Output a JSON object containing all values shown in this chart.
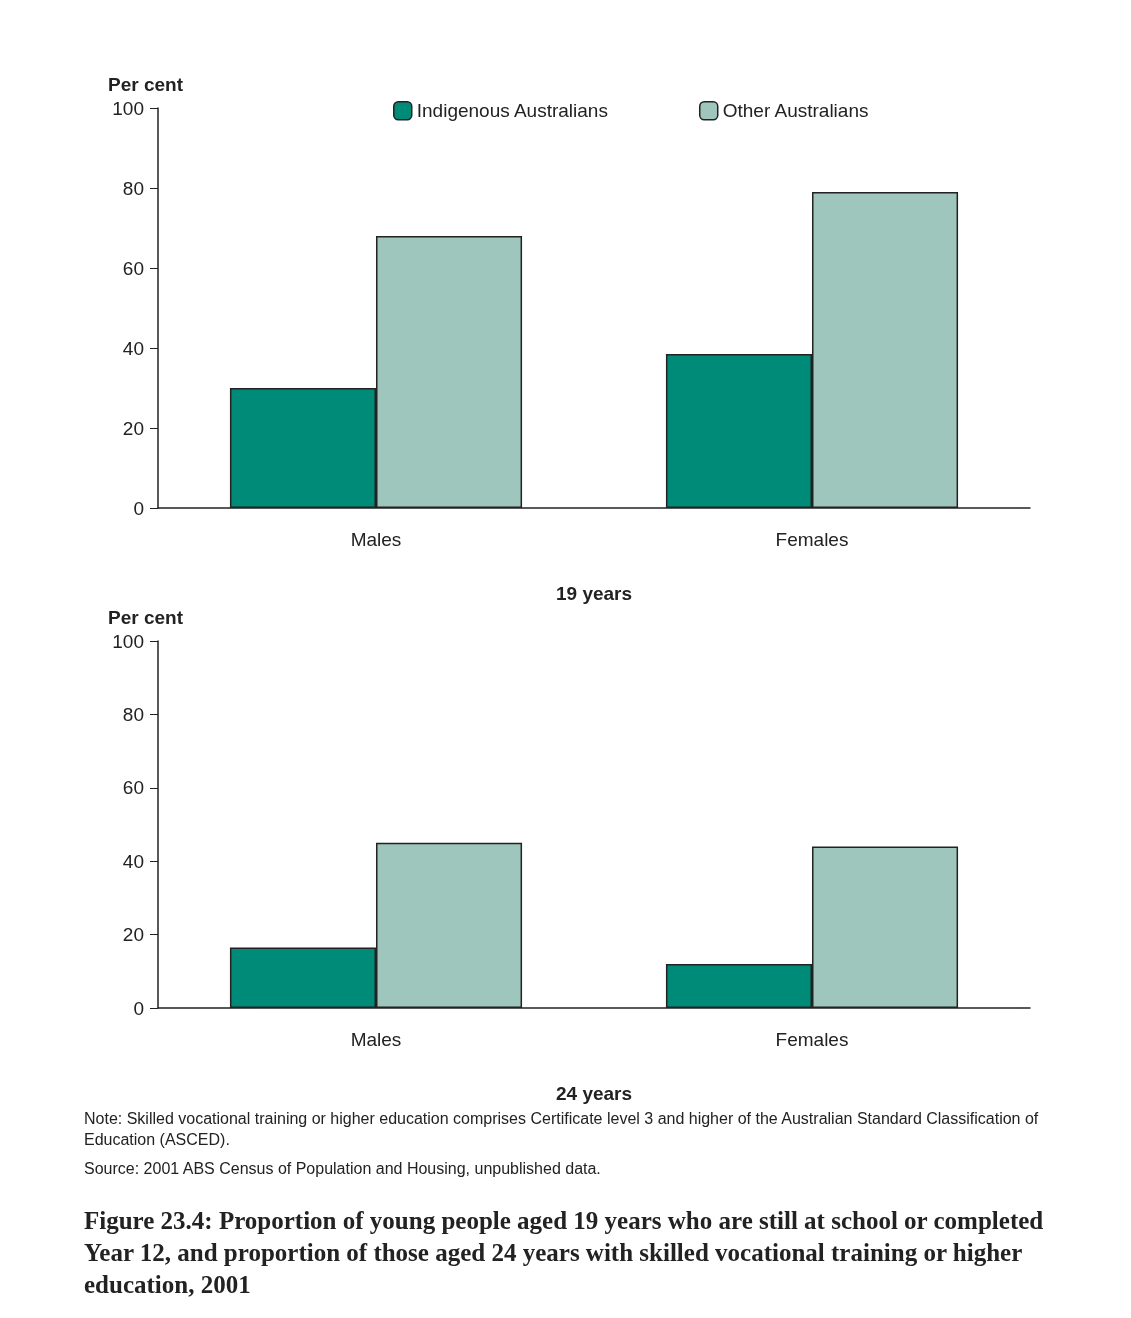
{
  "chart_data": [
    {
      "type": "bar",
      "xlabel": "19 years",
      "ylabel": "Per cent",
      "categories": [
        "Males",
        "Females"
      ],
      "series": [
        {
          "name": "Indigenous Australians",
          "color": "#008a78",
          "values": [
            30,
            38.5
          ]
        },
        {
          "name": "Other Australians",
          "color": "#9fc6bd",
          "values": [
            68,
            79
          ]
        }
      ],
      "ylim": [
        0,
        100
      ],
      "yticks": [
        0,
        20,
        40,
        60,
        80,
        100
      ],
      "grid": false,
      "legend": "top"
    },
    {
      "type": "bar",
      "xlabel": "24 years",
      "ylabel": "Per cent",
      "categories": [
        "Males",
        "Females"
      ],
      "series": [
        {
          "color": "#008a78",
          "values": [
            16.5,
            12
          ]
        },
        {
          "color": "#9fc6bd",
          "values": [
            45,
            44
          ]
        }
      ],
      "ylim": [
        0,
        100
      ],
      "yticks": [
        0,
        20,
        40,
        60,
        80,
        100
      ],
      "grid": false,
      "annotations": [
        "Note: Skilled vocational training or higher education comprises Certificate level 3 and higher of the Australian Standard Classification of Education (ASCED).",
        "Source: 2001 ABS Census of Population and Housing, unpublished data.",
        "Figure 23.4: Proportion of young people aged 19 years who are still at school or completed Year 12, and proportion of those aged 24 years with skilled vocational training or higher education, 2001"
      ]
    }
  ]
}
